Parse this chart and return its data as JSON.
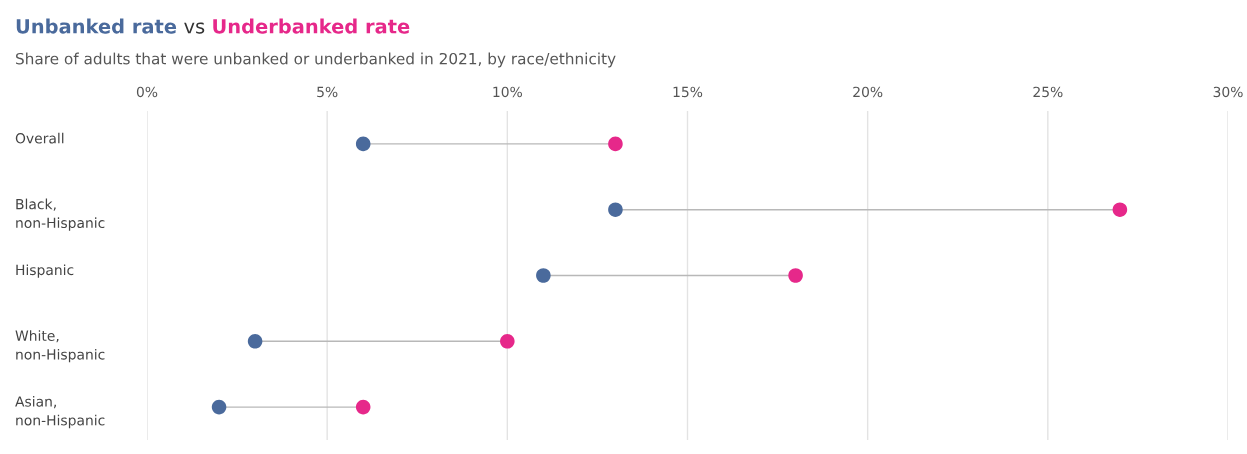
{
  "chart_data": {
    "type": "scatter",
    "orientation": "horizontal",
    "title": "vs",
    "subtitle": "Share of adults that were unbanked or underbanked in 2021, by race/ethnicity",
    "categories": [
      "Overall",
      "Black,\nnon-Hispanic",
      "Hispanic",
      "White,\nnon-Hispanic",
      "Asian,\nnon-Hispanic"
    ],
    "series": [
      {
        "name": "Unbanked rate",
        "color": "#4a6a9c",
        "values": [
          6,
          13,
          11,
          3,
          2
        ]
      },
      {
        "name": "Underbanked rate",
        "color": "#e6288a",
        "values": [
          13,
          27,
          18,
          10,
          6
        ]
      }
    ],
    "xlim": [
      0,
      30
    ],
    "xticks": [
      {
        "value": 0,
        "label": "0%"
      },
      {
        "value": 5,
        "label": "5%"
      },
      {
        "value": 10,
        "label": "10%"
      },
      {
        "value": 15,
        "label": "15%"
      },
      {
        "value": 20,
        "label": "20%"
      },
      {
        "value": 25,
        "label": "25%"
      },
      {
        "value": 30,
        "label": "30%"
      }
    ],
    "grid": "x",
    "marker": "circle",
    "legend": false
  }
}
